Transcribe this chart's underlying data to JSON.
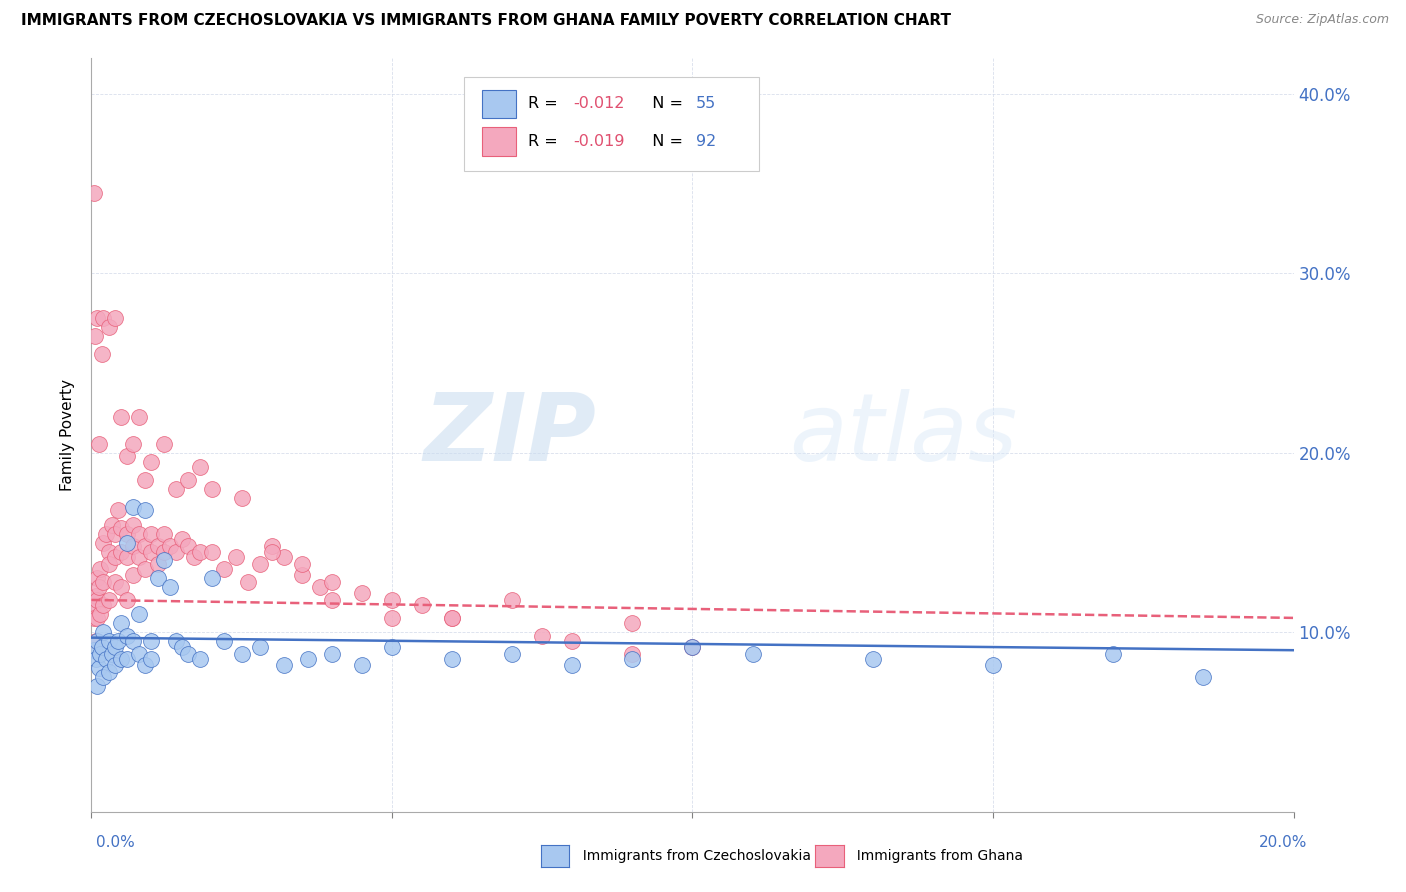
{
  "title": "IMMIGRANTS FROM CZECHOSLOVAKIA VS IMMIGRANTS FROM GHANA FAMILY POVERTY CORRELATION CHART",
  "source": "Source: ZipAtlas.com",
  "ylabel": "Family Poverty",
  "legend_R1": "R = ",
  "legend_R1_val": "-0.012",
  "legend_N1": "N = ",
  "legend_N1_val": "55",
  "legend_R2": "R = ",
  "legend_R2_val": "-0.019",
  "legend_N2": "N = ",
  "legend_N2_val": "92",
  "legend_label1": "Immigrants from Czechoslovakia",
  "legend_label2": "Immigrants from Ghana",
  "color_czech": "#A8C8F0",
  "color_ghana": "#F4A8BE",
  "color_czech_dark": "#4472C4",
  "color_ghana_dark": "#E8607A",
  "color_rval": "#E05070",
  "color_nval": "#4472C4",
  "watermark_zip": "ZIP",
  "watermark_atlas": "atlas",
  "xlim": [
    0.0,
    0.2
  ],
  "ylim": [
    0.0,
    0.42
  ],
  "yticks": [
    0.0,
    0.1,
    0.2,
    0.3,
    0.4
  ],
  "ytick_labels_right": [
    "",
    "10.0%",
    "20.0%",
    "30.0%",
    "40.0%"
  ],
  "czech_x": [
    0.0005,
    0.0008,
    0.001,
    0.001,
    0.0012,
    0.0015,
    0.0018,
    0.002,
    0.002,
    0.0025,
    0.003,
    0.003,
    0.0035,
    0.004,
    0.004,
    0.0045,
    0.005,
    0.005,
    0.006,
    0.006,
    0.006,
    0.007,
    0.007,
    0.008,
    0.008,
    0.009,
    0.009,
    0.01,
    0.01,
    0.011,
    0.012,
    0.013,
    0.014,
    0.015,
    0.016,
    0.018,
    0.02,
    0.022,
    0.025,
    0.028,
    0.032,
    0.036,
    0.04,
    0.045,
    0.05,
    0.06,
    0.07,
    0.08,
    0.09,
    0.1,
    0.11,
    0.13,
    0.15,
    0.17,
    0.185
  ],
  "czech_y": [
    0.09,
    0.085,
    0.095,
    0.07,
    0.08,
    0.088,
    0.092,
    0.075,
    0.1,
    0.085,
    0.095,
    0.078,
    0.088,
    0.092,
    0.082,
    0.095,
    0.085,
    0.105,
    0.098,
    0.085,
    0.15,
    0.095,
    0.17,
    0.11,
    0.088,
    0.082,
    0.168,
    0.095,
    0.085,
    0.13,
    0.14,
    0.125,
    0.095,
    0.092,
    0.088,
    0.085,
    0.13,
    0.095,
    0.088,
    0.092,
    0.082,
    0.085,
    0.088,
    0.082,
    0.092,
    0.085,
    0.088,
    0.082,
    0.085,
    0.092,
    0.088,
    0.085,
    0.082,
    0.088,
    0.075
  ],
  "ghana_x": [
    0.0003,
    0.0005,
    0.0007,
    0.0008,
    0.001,
    0.001,
    0.001,
    0.0012,
    0.0015,
    0.0015,
    0.002,
    0.002,
    0.002,
    0.0025,
    0.003,
    0.003,
    0.003,
    0.0035,
    0.004,
    0.004,
    0.004,
    0.0045,
    0.005,
    0.005,
    0.005,
    0.006,
    0.006,
    0.006,
    0.007,
    0.007,
    0.007,
    0.008,
    0.008,
    0.009,
    0.009,
    0.01,
    0.01,
    0.011,
    0.011,
    0.012,
    0.012,
    0.013,
    0.014,
    0.015,
    0.016,
    0.017,
    0.018,
    0.02,
    0.022,
    0.024,
    0.026,
    0.028,
    0.03,
    0.032,
    0.035,
    0.038,
    0.04,
    0.045,
    0.05,
    0.055,
    0.06,
    0.07,
    0.08,
    0.09,
    0.0004,
    0.0006,
    0.001,
    0.0013,
    0.0018,
    0.002,
    0.003,
    0.004,
    0.005,
    0.006,
    0.007,
    0.008,
    0.009,
    0.01,
    0.012,
    0.014,
    0.016,
    0.018,
    0.02,
    0.025,
    0.03,
    0.035,
    0.04,
    0.05,
    0.06,
    0.075,
    0.09,
    0.1
  ],
  "ghana_y": [
    0.115,
    0.108,
    0.12,
    0.095,
    0.13,
    0.118,
    0.108,
    0.125,
    0.135,
    0.11,
    0.15,
    0.128,
    0.115,
    0.155,
    0.145,
    0.138,
    0.118,
    0.16,
    0.155,
    0.142,
    0.128,
    0.168,
    0.158,
    0.145,
    0.125,
    0.155,
    0.142,
    0.118,
    0.16,
    0.148,
    0.132,
    0.155,
    0.142,
    0.148,
    0.135,
    0.145,
    0.155,
    0.148,
    0.138,
    0.155,
    0.145,
    0.148,
    0.145,
    0.152,
    0.148,
    0.142,
    0.145,
    0.145,
    0.135,
    0.142,
    0.128,
    0.138,
    0.148,
    0.142,
    0.132,
    0.125,
    0.118,
    0.122,
    0.108,
    0.115,
    0.108,
    0.118,
    0.095,
    0.105,
    0.345,
    0.265,
    0.275,
    0.205,
    0.255,
    0.275,
    0.27,
    0.275,
    0.22,
    0.198,
    0.205,
    0.22,
    0.185,
    0.195,
    0.205,
    0.18,
    0.185,
    0.192,
    0.18,
    0.175,
    0.145,
    0.138,
    0.128,
    0.118,
    0.108,
    0.098,
    0.088,
    0.092
  ],
  "czech_line_x": [
    0.0,
    0.2
  ],
  "czech_line_y": [
    0.097,
    0.09
  ],
  "ghana_line_x": [
    0.0,
    0.2
  ],
  "ghana_line_y": [
    0.118,
    0.108
  ]
}
